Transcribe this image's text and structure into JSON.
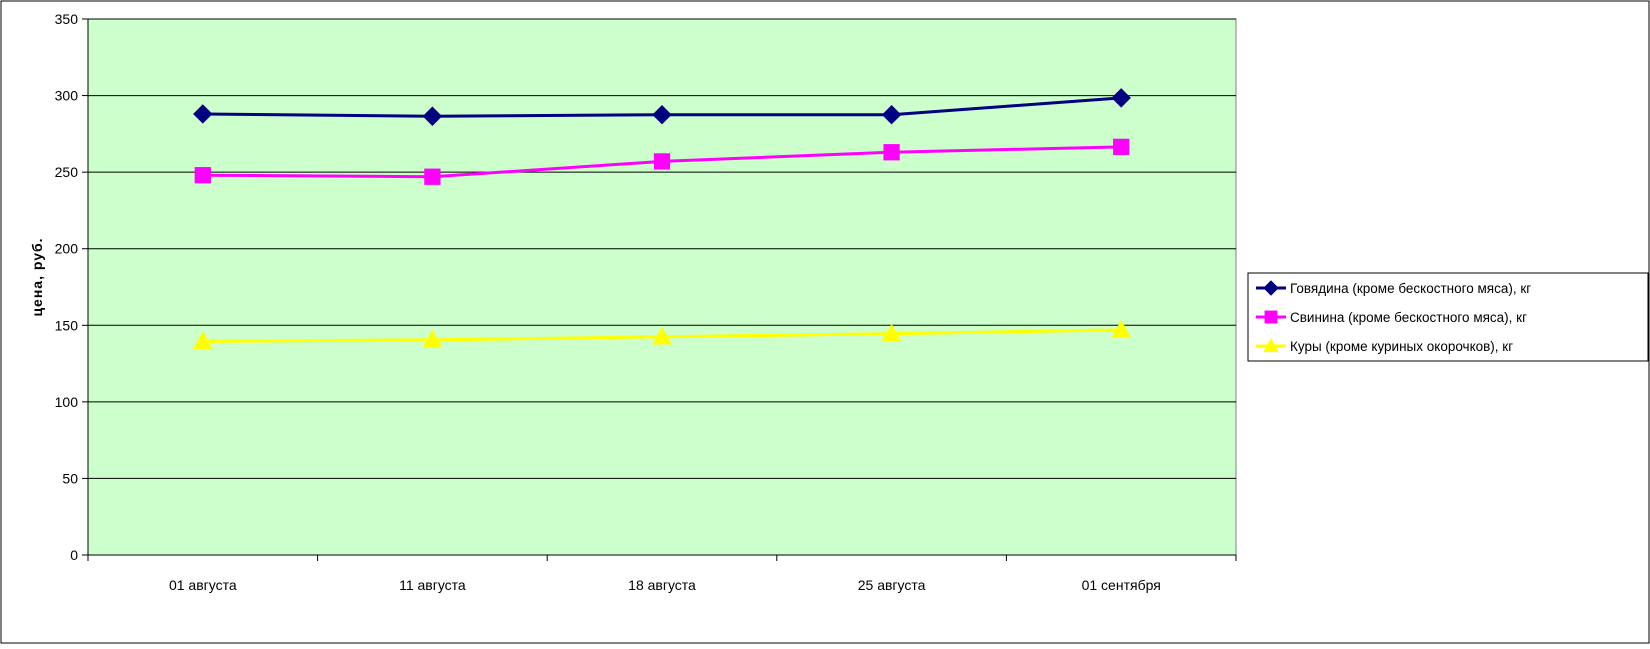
{
  "chart_data": {
    "type": "line",
    "title": "",
    "xlabel": "",
    "ylabel": "цена, руб.",
    "ylim": [
      0,
      350
    ],
    "yticks": [
      0,
      50,
      100,
      150,
      200,
      250,
      300,
      350
    ],
    "categories": [
      "01 августа",
      "11 августа",
      "18 августа",
      "25 августа",
      "01 сентября"
    ],
    "grid": true,
    "plot_background": "#ccffcc",
    "legend_position": "right",
    "series": [
      {
        "name": "Говядина (кроме бескостного мяса), кг",
        "values": [
          288,
          286.5,
          287.5,
          287.5,
          298.5
        ],
        "color": "#000080",
        "marker": "diamond"
      },
      {
        "name": "Свинина (кроме бескостного мяса), кг",
        "values": [
          248,
          247,
          257,
          263,
          266.5
        ],
        "color": "#ff00ff",
        "marker": "square"
      },
      {
        "name": "Куры (кроме куриных окорочков), кг",
        "values": [
          139.5,
          140.5,
          142.5,
          144.5,
          147
        ],
        "color": "#ffff00",
        "marker": "triangle"
      }
    ]
  }
}
